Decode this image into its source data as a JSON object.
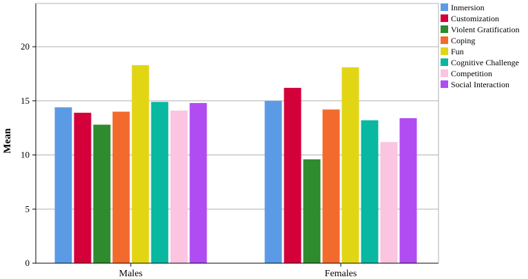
{
  "chart_data": {
    "type": "bar",
    "ylabel": "Mean",
    "xlabel": "",
    "ylim": [
      0,
      24
    ],
    "yticks": [
      0,
      5,
      10,
      15,
      20
    ],
    "grid": true,
    "legend_position": "top-right",
    "categories": [
      "Males",
      "Females"
    ],
    "series": [
      {
        "name": "Inmersion",
        "color": "#5b9be6",
        "values": [
          14.4,
          15.0
        ]
      },
      {
        "name": "Customization",
        "color": "#d4003a",
        "values": [
          13.9,
          16.2
        ]
      },
      {
        "name": "Violent Gratification",
        "color": "#2e8b2e",
        "values": [
          12.8,
          9.6
        ]
      },
      {
        "name": "Coping",
        "color": "#f36b2c",
        "values": [
          14.0,
          14.2
        ]
      },
      {
        "name": "Fun",
        "color": "#e2d614",
        "values": [
          18.3,
          18.1
        ]
      },
      {
        "name": "Cognitive Challenge",
        "color": "#08b8a0",
        "values": [
          14.9,
          13.2
        ]
      },
      {
        "name": "Competition",
        "color": "#fbc4e0",
        "values": [
          14.1,
          11.2
        ]
      },
      {
        "name": "Social Interaction",
        "color": "#b14cf2",
        "values": [
          14.8,
          13.4
        ]
      }
    ]
  }
}
